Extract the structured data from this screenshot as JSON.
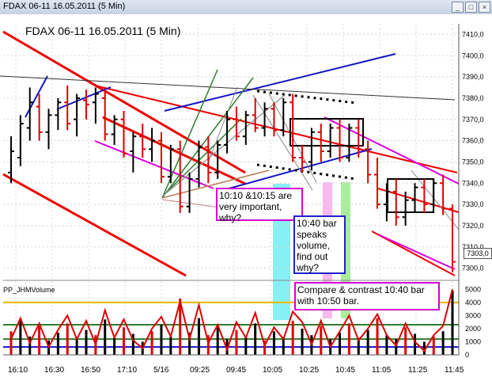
{
  "window": {
    "title": "FDAX 06-11  16.05.2011 (5 Min)"
  },
  "toolbar": {
    "symbol": "FDAX 06-11",
    "interval": "5 Min"
  },
  "chart_title": "FDAX 06-11  16.05.2011 (5 Min)",
  "indicator_label": "PP_JHMVolume",
  "last_price": "7303,0",
  "annotations": {
    "note1": "10:10 &10:15 are\nvery important, why?",
    "note2": "10:40 bar\nspeaks\nvolume,\nfind out\nwhy?",
    "note3": "Compare & contrast 10:40 bar\nwith 10:50 bar."
  },
  "colors": {
    "down_bar": "#dd0000",
    "up_bar": "#000000",
    "channel_red": "#ee0000",
    "channel_blue": "#1515c8",
    "channel_magenta": "#dd00dd",
    "fan_green": "#2d7d2d",
    "vol_line": "#dd0000",
    "vol_bar": "#000000",
    "highlight_cyan": "#88f0f4",
    "highlight_pink": "#f7b9ee",
    "highlight_green": "#a8ee9a"
  },
  "price_axis": {
    "ticks": [
      "7410,0",
      "7400,0",
      "7390,0",
      "7380,0",
      "7370,0",
      "7360,0",
      "7350,0",
      "7340,0",
      "7330,0",
      "7320,0",
      "7310,0",
      "7300,0"
    ]
  },
  "volume_axis": {
    "ticks": [
      "5000",
      "4000",
      "3000",
      "2000",
      "1000",
      "0"
    ]
  },
  "time_axis": {
    "ticks": [
      "16:10",
      "16:30",
      "16:50",
      "17:10",
      "5/16",
      "09:25",
      "09:45",
      "10:05",
      "10:25",
      "10:45",
      "11:05",
      "11:25",
      "11:45"
    ]
  },
  "chart_data": {
    "type": "ohlc",
    "price_range": [
      7295,
      7415
    ],
    "bars": [
      {
        "o": 7345,
        "h": 7362,
        "l": 7340,
        "c": 7355
      },
      {
        "o": 7352,
        "h": 7372,
        "l": 7348,
        "c": 7368
      },
      {
        "o": 7366,
        "h": 7385,
        "l": 7360,
        "c": 7378
      },
      {
        "o": 7376,
        "h": 7382,
        "l": 7360,
        "c": 7364
      },
      {
        "o": 7364,
        "h": 7375,
        "l": 7356,
        "c": 7372
      },
      {
        "o": 7372,
        "h": 7380,
        "l": 7365,
        "c": 7378
      },
      {
        "o": 7378,
        "h": 7386,
        "l": 7365,
        "c": 7368
      },
      {
        "o": 7370,
        "h": 7382,
        "l": 7362,
        "c": 7380
      },
      {
        "o": 7379,
        "h": 7384,
        "l": 7370,
        "c": 7377
      },
      {
        "o": 7378,
        "h": 7385,
        "l": 7368,
        "c": 7382
      },
      {
        "o": 7380,
        "h": 7384,
        "l": 7360,
        "c": 7363
      },
      {
        "o": 7363,
        "h": 7372,
        "l": 7358,
        "c": 7370
      },
      {
        "o": 7370,
        "h": 7374,
        "l": 7352,
        "c": 7354
      },
      {
        "o": 7355,
        "h": 7364,
        "l": 7345,
        "c": 7362
      },
      {
        "o": 7362,
        "h": 7368,
        "l": 7352,
        "c": 7356
      },
      {
        "o": 7356,
        "h": 7366,
        "l": 7350,
        "c": 7360
      },
      {
        "o": 7360,
        "h": 7364,
        "l": 7340,
        "c": 7343
      },
      {
        "o": 7343,
        "h": 7358,
        "l": 7340,
        "c": 7356
      },
      {
        "o": 7356,
        "h": 7360,
        "l": 7326,
        "c": 7329
      },
      {
        "o": 7329,
        "h": 7345,
        "l": 7326,
        "c": 7342
      },
      {
        "o": 7342,
        "h": 7360,
        "l": 7338,
        "c": 7357
      },
      {
        "o": 7357,
        "h": 7362,
        "l": 7340,
        "c": 7345
      },
      {
        "o": 7345,
        "h": 7360,
        "l": 7342,
        "c": 7358
      },
      {
        "o": 7358,
        "h": 7374,
        "l": 7354,
        "c": 7370
      },
      {
        "o": 7370,
        "h": 7376,
        "l": 7360,
        "c": 7362
      },
      {
        "o": 7362,
        "h": 7374,
        "l": 7358,
        "c": 7372
      },
      {
        "o": 7372,
        "h": 7380,
        "l": 7364,
        "c": 7366
      },
      {
        "o": 7366,
        "h": 7378,
        "l": 7362,
        "c": 7375
      },
      {
        "o": 7375,
        "h": 7378,
        "l": 7362,
        "c": 7365
      },
      {
        "o": 7365,
        "h": 7380,
        "l": 7362,
        "c": 7378
      },
      {
        "o": 7378,
        "h": 7382,
        "l": 7350,
        "c": 7352
      },
      {
        "o": 7352,
        "h": 7358,
        "l": 7345,
        "c": 7350
      },
      {
        "o": 7350,
        "h": 7366,
        "l": 7346,
        "c": 7364
      },
      {
        "o": 7364,
        "h": 7368,
        "l": 7350,
        "c": 7355
      },
      {
        "o": 7355,
        "h": 7368,
        "l": 7352,
        "c": 7366
      },
      {
        "o": 7366,
        "h": 7370,
        "l": 7350,
        "c": 7352
      },
      {
        "o": 7352,
        "h": 7368,
        "l": 7350,
        "c": 7366
      },
      {
        "o": 7366,
        "h": 7370,
        "l": 7352,
        "c": 7356
      },
      {
        "o": 7356,
        "h": 7360,
        "l": 7340,
        "c": 7344
      },
      {
        "o": 7344,
        "h": 7352,
        "l": 7328,
        "c": 7330
      },
      {
        "o": 7330,
        "h": 7340,
        "l": 7322,
        "c": 7336
      },
      {
        "o": 7336,
        "h": 7342,
        "l": 7320,
        "c": 7324
      },
      {
        "o": 7324,
        "h": 7336,
        "l": 7320,
        "c": 7332
      },
      {
        "o": 7332,
        "h": 7340,
        "l": 7326,
        "c": 7338
      },
      {
        "o": 7338,
        "h": 7342,
        "l": 7326,
        "c": 7330
      },
      {
        "o": 7330,
        "h": 7342,
        "l": 7328,
        "c": 7340
      },
      {
        "o": 7340,
        "h": 7344,
        "l": 7325,
        "c": 7328
      },
      {
        "o": 7328,
        "h": 7330,
        "l": 7298,
        "c": 7303
      }
    ],
    "volume": [
      1800,
      2600,
      1400,
      2200,
      1100,
      1700,
      2400,
      1200,
      1900,
      1500,
      2700,
      1300,
      2100,
      1600,
      1000,
      1800,
      2300,
      1400,
      4300,
      1700,
      2800,
      1500,
      2200,
      1200,
      1900,
      1400,
      2400,
      1100,
      1800,
      1300,
      2600,
      2000,
      1500,
      2200,
      1200,
      1700,
      2400,
      1300,
      1900,
      2800,
      1500,
      1200,
      2100,
      1600,
      1000,
      1400,
      1800,
      4900
    ],
    "volume_line": [
      1200,
      2800,
      900,
      2400,
      600,
      1900,
      3000,
      1200,
      2600,
      800,
      3400,
      1300,
      2700,
      1100,
      500,
      2000,
      2900,
      1400,
      4100,
      1200,
      3800,
      900,
      2300,
      400,
      2500,
      1300,
      3200,
      700,
      2100,
      1200,
      3300,
      2500,
      800,
      2600,
      600,
      1800,
      3000,
      1100,
      2000,
      3100,
      1500,
      700,
      2400,
      1000,
      300,
      1500,
      2200,
      5000
    ]
  }
}
